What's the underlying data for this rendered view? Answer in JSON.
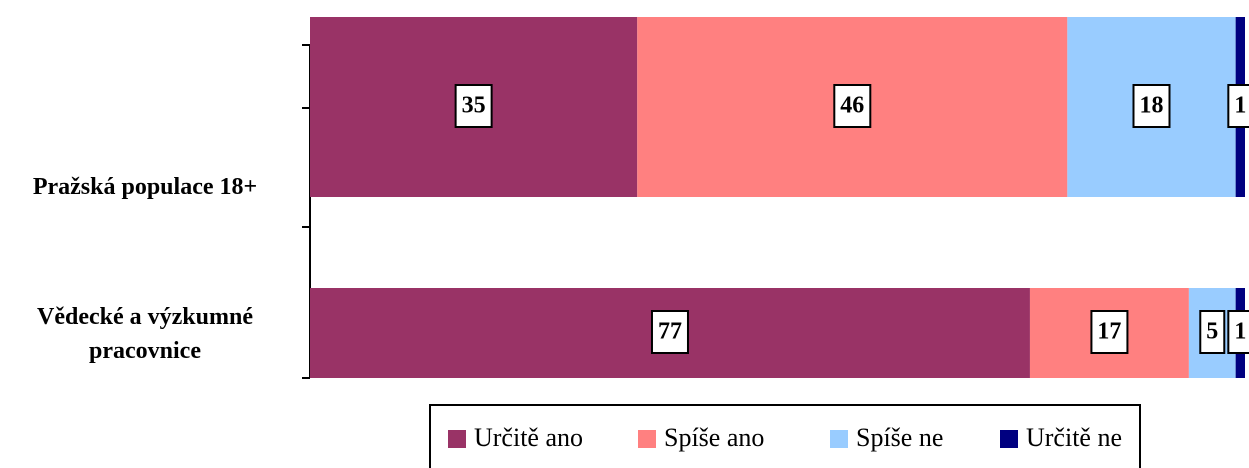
{
  "chart_data": {
    "type": "stacked_bar_horizontal",
    "categories": [
      "Pražská populace 18+",
      "Vědecké a výzkumné pracovnice"
    ],
    "series": [
      {
        "name": "Určitě ano",
        "color": "#993366",
        "values": [
          35,
          77
        ]
      },
      {
        "name": "Spíše ano",
        "color": "#ff8080",
        "values": [
          46,
          17
        ]
      },
      {
        "name": "Spíše ne",
        "color": "#99ccff",
        "values": [
          18,
          5
        ]
      },
      {
        "name": "Určitě ne",
        "color": "#000080",
        "values": [
          1,
          1
        ]
      }
    ],
    "xlim": [
      0,
      100
    ]
  }
}
